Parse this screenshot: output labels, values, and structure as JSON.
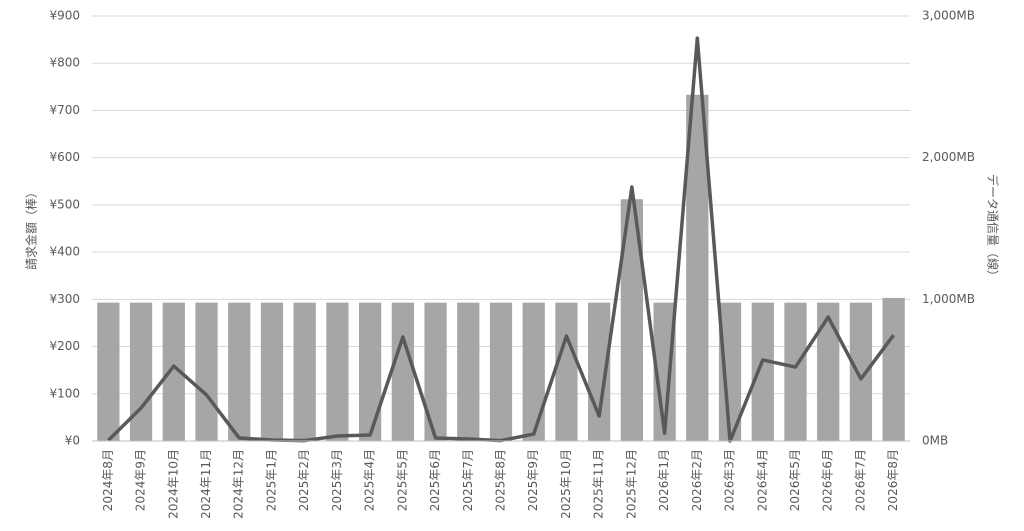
{
  "chart_data": {
    "type": "combo",
    "y_label": "請求金額（棒）",
    "y2_label": "データ通信量（線）",
    "categories": [
      "2024年8月",
      "2024年9月",
      "2024年10月",
      "2024年11月",
      "2024年12月",
      "2025年1月",
      "2025年2月",
      "2025年3月",
      "2025年4月",
      "2025年5月",
      "2025年6月",
      "2025年7月",
      "2025年8月",
      "2025年9月",
      "2025年10月",
      "2025年11月",
      "2025年12月",
      "2026年1月",
      "2026年2月",
      "2026年3月",
      "2026年4月",
      "2026年5月",
      "2026年6月",
      "2026年7月",
      "2026年8月"
    ],
    "series": [
      {
        "type": "bar",
        "color": "#a6a6a6",
        "axis": "y",
        "values": [
          293,
          293,
          293,
          293,
          293,
          293,
          293,
          293,
          293,
          293,
          293,
          293,
          293,
          293,
          293,
          293,
          512,
          293,
          733,
          293,
          293,
          293,
          293,
          293,
          303
        ]
      },
      {
        "type": "line",
        "color": "#595959",
        "axis": "y2",
        "values": [
          5,
          233,
          529,
          325,
          21,
          7,
          3,
          35,
          42,
          734,
          21,
          14,
          3,
          49,
          741,
          176,
          1793,
          56,
          2844,
          0,
          572,
          522,
          875,
          438,
          748
        ]
      }
    ],
    "ylim": [
      0,
      900
    ],
    "yticks": [
      {
        "value": 0,
        "label": "¥0"
      },
      {
        "value": 100,
        "label": "¥100"
      },
      {
        "value": 200,
        "label": "¥200"
      },
      {
        "value": 300,
        "label": "¥300"
      },
      {
        "value": 400,
        "label": "¥400"
      },
      {
        "value": 500,
        "label": "¥500"
      },
      {
        "value": 600,
        "label": "¥600"
      },
      {
        "value": 700,
        "label": "¥700"
      },
      {
        "value": 800,
        "label": "¥800"
      },
      {
        "value": 900,
        "label": "¥900"
      }
    ],
    "y2lim": [
      0,
      3000
    ],
    "y2ticks": [
      {
        "value": 0,
        "label": "0MB"
      },
      {
        "value": 1000,
        "label": "1,000MB"
      },
      {
        "value": 2000,
        "label": "2,000MB"
      },
      {
        "value": 3000,
        "label": "3,000MB"
      }
    ],
    "grid": true
  }
}
